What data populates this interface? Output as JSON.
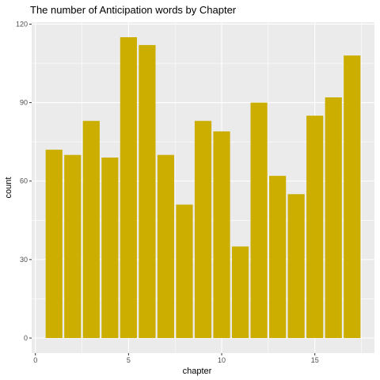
{
  "chart_data": {
    "type": "bar",
    "title": "The number of Anticipation words by Chapter",
    "xlabel": "chapter",
    "ylabel": "count",
    "categories": [
      1,
      2,
      3,
      4,
      5,
      6,
      7,
      8,
      9,
      10,
      11,
      12,
      13,
      14,
      15,
      16,
      17
    ],
    "values": [
      72,
      70,
      83,
      69,
      115,
      112,
      70,
      51,
      83,
      79,
      35,
      90,
      62,
      55,
      85,
      92,
      108
    ],
    "xlim": [
      -0.2,
      18.2
    ],
    "ylim": [
      -5.75,
      120.75
    ],
    "x_ticks": [
      0,
      5,
      10,
      15
    ],
    "y_ticks": [
      0,
      30,
      60,
      90,
      120
    ],
    "grid": true,
    "colors": {
      "bar": "#CCAE00",
      "panel": "#EBEBEB",
      "grid_major": "#FFFFFF",
      "tick_text": "#4D4D4D",
      "tick_mark": "#333333"
    }
  }
}
